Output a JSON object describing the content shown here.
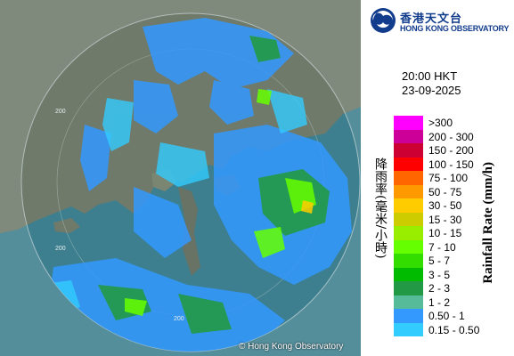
{
  "map": {
    "range_ring_label": "200",
    "copyright": "© Hong Kong Observatory"
  },
  "header": {
    "logo_cn": "香港天文台",
    "logo_en": "HONG KONG OBSERVATORY",
    "time": "20:00 HKT",
    "date": "23-09-2025"
  },
  "legend": {
    "title_cn": "降雨率(毫米/小時)",
    "title_en": "Rainfall Rate (mm/h)",
    "items": [
      {
        "label": ">300",
        "color": "#ff00ff"
      },
      {
        "label": "200 - 300",
        "color": "#cc0099"
      },
      {
        "label": "150 - 200",
        "color": "#cc0033"
      },
      {
        "label": "100 - 150",
        "color": "#ff0000"
      },
      {
        "label": "75 - 100",
        "color": "#ff6600"
      },
      {
        "label": "50 - 75",
        "color": "#ff9900"
      },
      {
        "label": "30 - 50",
        "color": "#ffcc00"
      },
      {
        "label": "15 - 30",
        "color": "#cccc00"
      },
      {
        "label": "10 - 15",
        "color": "#99ee00"
      },
      {
        "label": "7 - 10",
        "color": "#66ff00"
      },
      {
        "label": "5 - 7",
        "color": "#33dd00"
      },
      {
        "label": "3 - 5",
        "color": "#00bb00"
      },
      {
        "label": "2 - 3",
        "color": "#229944"
      },
      {
        "label": "1 - 2",
        "color": "#55bb99"
      },
      {
        "label": "0.50 - 1",
        "color": "#3399ff"
      },
      {
        "label": "0.15 - 0.50",
        "color": "#33ccff"
      }
    ]
  }
}
